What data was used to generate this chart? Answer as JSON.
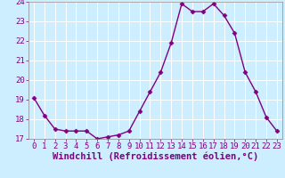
{
  "x": [
    0,
    1,
    2,
    3,
    4,
    5,
    6,
    7,
    8,
    9,
    10,
    11,
    12,
    13,
    14,
    15,
    16,
    17,
    18,
    19,
    20,
    21,
    22,
    23
  ],
  "y": [
    19.1,
    18.2,
    17.5,
    17.4,
    17.4,
    17.4,
    17.0,
    17.1,
    17.2,
    17.4,
    18.4,
    19.4,
    20.4,
    21.9,
    23.9,
    23.5,
    23.5,
    23.9,
    23.3,
    22.4,
    20.4,
    19.4,
    18.1,
    17.4
  ],
  "xlabel": "Windchill (Refroidissement éolien,°C)",
  "ylim": [
    17,
    24
  ],
  "xlim": [
    -0.5,
    23.5
  ],
  "yticks": [
    17,
    18,
    19,
    20,
    21,
    22,
    23,
    24
  ],
  "xticks": [
    0,
    1,
    2,
    3,
    4,
    5,
    6,
    7,
    8,
    9,
    10,
    11,
    12,
    13,
    14,
    15,
    16,
    17,
    18,
    19,
    20,
    21,
    22,
    23
  ],
  "line_color": "#800080",
  "marker": "D",
  "marker_size": 2.5,
  "bg_color": "#cceeff",
  "grid_color": "#ffffff",
  "tick_label_color": "#800080",
  "axis_label_color": "#800080",
  "font_size_ticks": 6.5,
  "font_size_xlabel": 7.5,
  "spine_color": "#888888"
}
